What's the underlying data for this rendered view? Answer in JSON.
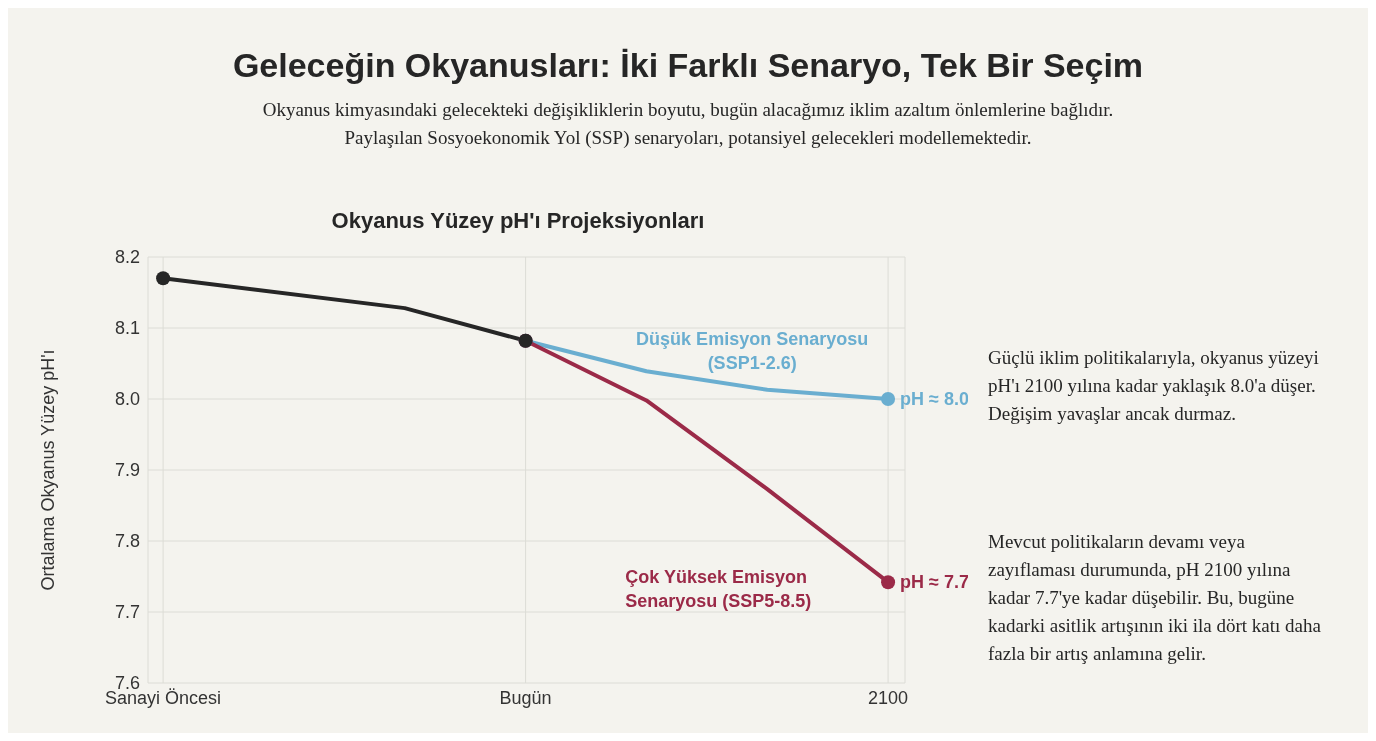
{
  "chart_data": {
    "type": "line",
    "title": "Geleceğin Okyanusları: İki Farklı Senaryo, Tek Bir Seçim",
    "subtitle": "Okyanus kimyasındaki gelecekteki değişikliklerin boyutu, bugün alacağımız iklim azaltım önlemlerine bağlıdır. Paylaşılan Sosyoekonomik Yol (SSP) senaryoları, potansiyel gelecekleri modellemektedir.",
    "ylabel": "Ortalama Okyanus Yüzey pH'ı",
    "categories": [
      "Sanayi Öncesi",
      null,
      null,
      null,
      null,
      null,
      "Bugün",
      null,
      null,
      null,
      null,
      null,
      "2100"
    ],
    "ylim": [
      7.6,
      8.2
    ],
    "yticks": [
      {
        "value": 7.6,
        "label": "7.6"
      },
      {
        "value": 7.7,
        "label": "7.7"
      },
      {
        "value": 7.8,
        "label": "7.8"
      },
      {
        "value": 7.9,
        "label": "7.9"
      },
      {
        "value": 8,
        "label": "8.0"
      },
      {
        "value": 8.1,
        "label": "8.1"
      },
      {
        "value": 8.2,
        "label": "8.2"
      }
    ],
    "grid": true,
    "marker": "circle",
    "line_style": "solid",
    "series": [
      {
        "name": "Düşük Emisyon Senaryosu (SSP1-2.6)",
        "color": "#6aaed0",
        "values": [
          null,
          null,
          null,
          null,
          null,
          null,
          8.082,
          null,
          8.039,
          null,
          8.013,
          null,
          8.0
        ]
      },
      {
        "name": "Çok Yüksek Emisyon Senaryosu (SSP5-8.5)",
        "color": "#9b2a48",
        "values": [
          null,
          null,
          null,
          null,
          null,
          null,
          8.082,
          null,
          7.998,
          null,
          7.873,
          null,
          7.742
        ]
      },
      {
        "color": "#262626",
        "values": [
          8.17,
          null,
          null,
          null,
          8.128,
          null,
          8.082,
          null,
          null,
          null,
          null,
          null,
          null
        ]
      }
    ],
    "annotations": [
      "Okyanus Yüzey pH'ı Projeksiyonları",
      {
        "text": "pH ≈ 8.0",
        "x": "2100",
        "y": 8.0
      },
      {
        "text": "pH ≈ 7.7",
        "x": "2100",
        "y": 7.742
      },
      "Güçlü iklim politikalarıyla, okyanus yüzeyi pH'ı 2100 yılına kadar yaklaşık 8.0'a düşer. Değişim yavaşlar ancak durmaz.",
      "Mevcut politikaların devamı veya zayıflaması durumunda, pH 2100 yılına kadar 7.7'ye kadar düşebilir. Bu, bugüne kadarki asitlik artışının iki ila dört katı daha fazla bir artış anlamına gelir."
    ]
  }
}
